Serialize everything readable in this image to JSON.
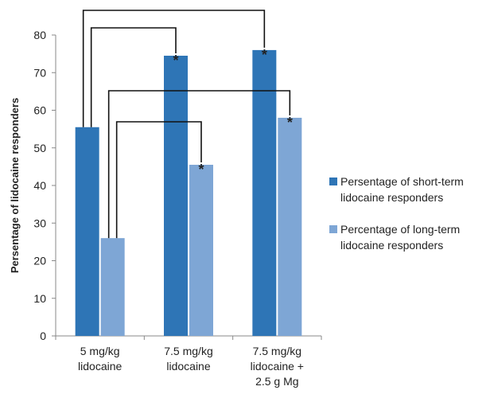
{
  "chart_data": {
    "type": "bar",
    "title": "",
    "xlabel": "",
    "ylabel": "Persentage of  lidocaine responders",
    "ylim": [
      0,
      80
    ],
    "yticks": [
      0,
      10,
      20,
      30,
      40,
      50,
      60,
      70,
      80
    ],
    "grid": false,
    "legend_position": "right",
    "categories": [
      [
        "5 mg/kg",
        "lidocaine"
      ],
      [
        "7.5 mg/kg",
        "lidocaine"
      ],
      [
        "7.5 mg/kg",
        "lidocaine +",
        "2.5 g Mg"
      ]
    ],
    "series": [
      {
        "name": [
          "Persentage of short-term",
          "lidocaine responders"
        ],
        "color": "#2e75b6",
        "values": [
          55.5,
          74.5,
          76
        ],
        "significant": [
          false,
          true,
          true
        ]
      },
      {
        "name": [
          "Percentage of long-term",
          "lidocaine responders"
        ],
        "color": "#7ea6d5",
        "values": [
          26,
          45.5,
          58
        ],
        "significant": [
          false,
          true,
          true
        ]
      }
    ],
    "significance_marker": "*",
    "comparison_brackets": [
      {
        "from": [
          0,
          0
        ],
        "to": [
          2,
          0
        ]
      },
      {
        "from": [
          0,
          0
        ],
        "to": [
          1,
          0
        ]
      },
      {
        "from": [
          0,
          1
        ],
        "to": [
          2,
          1
        ]
      },
      {
        "from": [
          0,
          1
        ],
        "to": [
          1,
          1
        ]
      }
    ]
  }
}
